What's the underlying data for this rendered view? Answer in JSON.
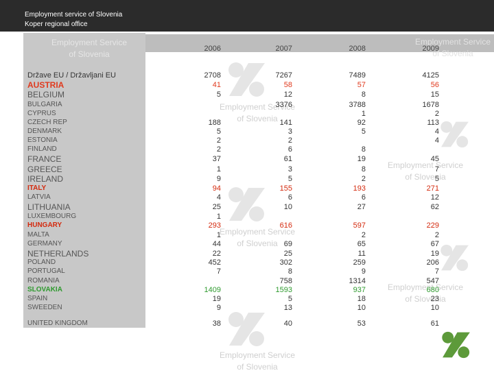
{
  "header": {
    "line1": "Employment service of Slovenia",
    "line2": "Koper regional office"
  },
  "watermark": {
    "line1": "Employment Service",
    "line2": "of Slovenia"
  },
  "table": {
    "column_label": "Države EU / Državljani EU",
    "years": [
      "2006",
      "2007",
      "2008",
      "2009"
    ],
    "rows": [
      {
        "country": "AUSTRIA",
        "color": "#e03a1e",
        "size": 12,
        "values": [
          "41",
          "58",
          "57",
          "56"
        ]
      },
      {
        "country": "BELGIUM",
        "color": "#555555",
        "size": 12,
        "values": [
          "5",
          "12",
          "8",
          "15"
        ]
      },
      {
        "country": "BULGARIA",
        "color": "#555555",
        "size": 10,
        "values": [
          "",
          "3376",
          "3788",
          "1678"
        ]
      },
      {
        "country": "CYPRUS",
        "color": "#555555",
        "size": 10,
        "values": [
          "",
          "",
          "1",
          "2"
        ]
      },
      {
        "country": "CZECH REP",
        "color": "#555555",
        "size": 10,
        "values": [
          "188",
          "141",
          "92",
          "113"
        ]
      },
      {
        "country": "DENMARK",
        "color": "#555555",
        "size": 10,
        "values": [
          "5",
          "3",
          "5",
          "4"
        ]
      },
      {
        "country": "ESTONIA",
        "color": "#555555",
        "size": 10,
        "values": [
          "2",
          "2",
          "",
          "4"
        ]
      },
      {
        "country": "FINLAND",
        "color": "#555555",
        "size": 10,
        "values": [
          "2",
          "6",
          "8",
          ""
        ]
      },
      {
        "country": "FRANCE",
        "color": "#555555",
        "size": 12,
        "values": [
          "37",
          "61",
          "19",
          "45"
        ]
      },
      {
        "country": "GREECE",
        "color": "#555555",
        "size": 12,
        "values": [
          "1",
          "3",
          "8",
          "7"
        ]
      },
      {
        "country": "IRELAND",
        "color": "#555555",
        "size": 12,
        "values": [
          "9",
          "5",
          "2",
          "5"
        ]
      },
      {
        "country": "ITALY",
        "color": "#d42a0e",
        "size": 10,
        "values": [
          "94",
          "155",
          "193",
          "271"
        ]
      },
      {
        "country": "LATVIA",
        "color": "#555555",
        "size": 10,
        "values": [
          "4",
          "6",
          "6",
          "12"
        ]
      },
      {
        "country": "LITHUANIA",
        "color": "#555555",
        "size": 12,
        "values": [
          "25",
          "10",
          "27",
          "62"
        ]
      },
      {
        "country": "LUXEMBOURG",
        "color": "#555555",
        "size": 10,
        "values": [
          "1",
          "",
          "",
          ""
        ]
      },
      {
        "country": "HUNGARY",
        "color": "#d42a0e",
        "size": 10,
        "values": [
          "293",
          "616",
          "597",
          "229"
        ]
      },
      {
        "country": "MALTA",
        "color": "#555555",
        "size": 10,
        "values": [
          "1",
          "",
          "2",
          "2"
        ]
      },
      {
        "country": "GERMANY",
        "color": "#555555",
        "size": 10,
        "values": [
          "44",
          "69",
          "65",
          "67"
        ]
      },
      {
        "country": "NETHERLANDS",
        "color": "#555555",
        "size": 12,
        "values": [
          "22",
          "25",
          "11",
          "19"
        ]
      },
      {
        "country": "POLAND",
        "color": "#555555",
        "size": 10,
        "values": [
          "452",
          "302",
          "259",
          "206"
        ]
      },
      {
        "country": "PORTUGAL",
        "color": "#555555",
        "size": 10,
        "values": [
          "7",
          "8",
          "9",
          "7"
        ]
      },
      {
        "country": "ROMANIA",
        "color": "#555555",
        "size": 10,
        "values": [
          "",
          "758",
          "1314",
          "547"
        ]
      },
      {
        "country": "SLOVAKIA",
        "color": "#2e9a2e",
        "size": 10,
        "values": [
          "1409",
          "1593",
          "937",
          "680"
        ]
      },
      {
        "country": "SPAIN",
        "color": "#555555",
        "size": 10,
        "values": [
          "19",
          "5",
          "18",
          "23"
        ]
      },
      {
        "country": "SWEEDEN",
        "color": "#555555",
        "size": 10,
        "values": [
          "9",
          "13",
          "10",
          "10"
        ]
      },
      {
        "country": "UNITED KINGDOM",
        "color": "#555555",
        "size": 10,
        "values": [
          "38",
          "40",
          "53",
          "61"
        ]
      }
    ],
    "totals": [
      "2708",
      "7267",
      "7489",
      "4125"
    ]
  },
  "colors": {
    "logo_green": "#5d9a3a",
    "header_bg": "#2b2b2b",
    "panel_bg": "#c8c8c8"
  }
}
